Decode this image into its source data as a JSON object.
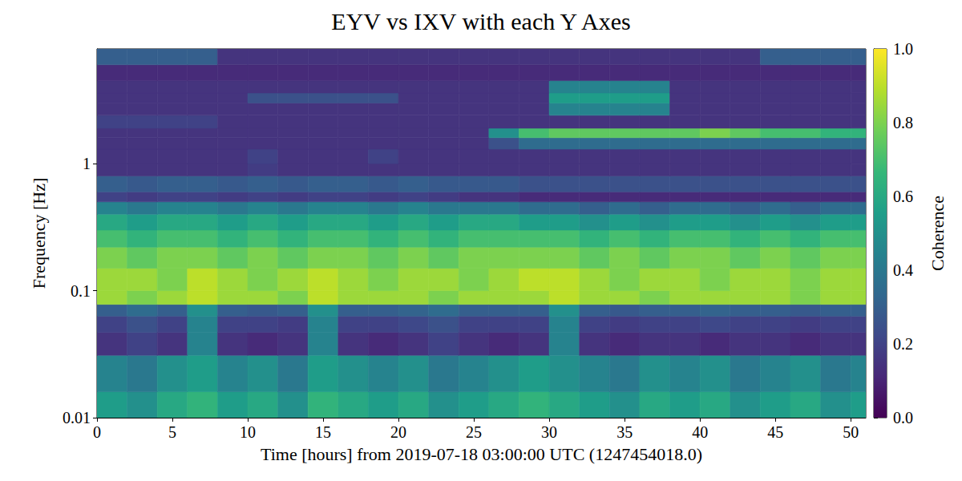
{
  "chart_data": {
    "type": "heatmap",
    "title": "EYV vs IXV with each Y Axes",
    "x_label": "Time [hours] from 2019-07-18 03:00:00 UTC (1247454018.0)",
    "y_label": "Frequency [Hz]",
    "xlim": [
      0,
      51
    ],
    "xticks": [
      0,
      5,
      10,
      15,
      20,
      25,
      30,
      35,
      40,
      45,
      50
    ],
    "ylim": [
      0.01,
      8
    ],
    "yticks": [
      0.01,
      0.1,
      1
    ],
    "log": "y",
    "grid": false,
    "x_edges": [
      0,
      2,
      4,
      6,
      8,
      10,
      12,
      14,
      16,
      18,
      20,
      22,
      24,
      26,
      28,
      30,
      32,
      34,
      36,
      38,
      40,
      42,
      44,
      46,
      48,
      50,
      51
    ],
    "y_edges": [
      0.01,
      0.016,
      0.031,
      0.047,
      0.063,
      0.078,
      0.1,
      0.15,
      0.22,
      0.3,
      0.4,
      0.5,
      0.6,
      0.8,
      1.0,
      1.3,
      1.6,
      1.9,
      2.4,
      3.0,
      3.6,
      4.5,
      6.0,
      8.0
    ],
    "cells": [
      [
        0.55,
        0.5,
        0.6,
        0.65,
        0.55,
        0.6,
        0.5,
        0.65,
        0.6,
        0.55,
        0.6,
        0.5,
        0.55,
        0.6,
        0.65,
        0.6,
        0.55,
        0.5,
        0.6,
        0.55,
        0.6,
        0.5,
        0.55,
        0.6,
        0.5,
        0.55
      ],
      [
        0.45,
        0.4,
        0.5,
        0.55,
        0.45,
        0.5,
        0.4,
        0.55,
        0.5,
        0.45,
        0.5,
        0.4,
        0.45,
        0.5,
        0.55,
        0.5,
        0.45,
        0.4,
        0.5,
        0.45,
        0.5,
        0.4,
        0.45,
        0.5,
        0.4,
        0.45
      ],
      [
        0.15,
        0.2,
        0.15,
        0.45,
        0.15,
        0.12,
        0.15,
        0.45,
        0.15,
        0.12,
        0.15,
        0.2,
        0.15,
        0.12,
        0.15,
        0.45,
        0.15,
        0.12,
        0.15,
        0.15,
        0.12,
        0.15,
        0.15,
        0.12,
        0.15,
        0.15
      ],
      [
        0.2,
        0.25,
        0.2,
        0.45,
        0.2,
        0.2,
        0.18,
        0.45,
        0.2,
        0.2,
        0.22,
        0.25,
        0.2,
        0.2,
        0.2,
        0.45,
        0.2,
        0.18,
        0.2,
        0.2,
        0.22,
        0.2,
        0.2,
        0.18,
        0.2,
        0.2
      ],
      [
        0.3,
        0.35,
        0.3,
        0.5,
        0.3,
        0.28,
        0.3,
        0.5,
        0.3,
        0.3,
        0.32,
        0.35,
        0.3,
        0.3,
        0.3,
        0.5,
        0.3,
        0.28,
        0.3,
        0.3,
        0.32,
        0.3,
        0.3,
        0.28,
        0.3,
        0.3
      ],
      [
        0.85,
        0.8,
        0.85,
        0.9,
        0.85,
        0.85,
        0.8,
        0.9,
        0.85,
        0.85,
        0.85,
        0.8,
        0.85,
        0.85,
        0.85,
        0.9,
        0.85,
        0.85,
        0.8,
        0.85,
        0.85,
        0.85,
        0.85,
        0.8,
        0.85,
        0.85
      ],
      [
        0.85,
        0.85,
        0.8,
        0.9,
        0.85,
        0.8,
        0.85,
        0.9,
        0.85,
        0.8,
        0.85,
        0.85,
        0.8,
        0.85,
        0.9,
        0.9,
        0.85,
        0.8,
        0.85,
        0.85,
        0.8,
        0.85,
        0.85,
        0.8,
        0.85,
        0.85
      ],
      [
        0.8,
        0.75,
        0.8,
        0.8,
        0.75,
        0.8,
        0.75,
        0.8,
        0.8,
        0.75,
        0.8,
        0.75,
        0.8,
        0.8,
        0.8,
        0.8,
        0.75,
        0.8,
        0.75,
        0.8,
        0.8,
        0.75,
        0.8,
        0.75,
        0.8,
        0.8
      ],
      [
        0.7,
        0.65,
        0.7,
        0.7,
        0.65,
        0.7,
        0.65,
        0.7,
        0.7,
        0.65,
        0.7,
        0.65,
        0.7,
        0.7,
        0.7,
        0.7,
        0.65,
        0.7,
        0.65,
        0.7,
        0.7,
        0.65,
        0.7,
        0.65,
        0.7,
        0.7
      ],
      [
        0.6,
        0.55,
        0.6,
        0.6,
        0.55,
        0.6,
        0.55,
        0.6,
        0.6,
        0.55,
        0.6,
        0.55,
        0.6,
        0.6,
        0.55,
        0.55,
        0.5,
        0.55,
        0.5,
        0.55,
        0.55,
        0.5,
        0.55,
        0.5,
        0.55,
        0.55
      ],
      [
        0.45,
        0.4,
        0.45,
        0.45,
        0.4,
        0.45,
        0.4,
        0.45,
        0.45,
        0.4,
        0.45,
        0.4,
        0.4,
        0.4,
        0.35,
        0.35,
        0.3,
        0.35,
        0.3,
        0.35,
        0.35,
        0.3,
        0.35,
        0.3,
        0.35,
        0.35
      ],
      [
        0.2,
        0.18,
        0.2,
        0.2,
        0.18,
        0.2,
        0.18,
        0.2,
        0.2,
        0.18,
        0.2,
        0.18,
        0.15,
        0.15,
        0.12,
        0.12,
        0.12,
        0.12,
        0.12,
        0.12,
        0.12,
        0.12,
        0.12,
        0.12,
        0.12,
        0.12
      ],
      [
        0.3,
        0.28,
        0.3,
        0.3,
        0.28,
        0.3,
        0.28,
        0.3,
        0.3,
        0.28,
        0.3,
        0.28,
        0.28,
        0.28,
        0.25,
        0.25,
        0.25,
        0.25,
        0.25,
        0.25,
        0.25,
        0.25,
        0.25,
        0.25,
        0.25,
        0.25
      ],
      [
        0.15,
        0.15,
        0.15,
        0.15,
        0.15,
        0.18,
        0.15,
        0.15,
        0.15,
        0.15,
        0.15,
        0.15,
        0.15,
        0.15,
        0.15,
        0.15,
        0.15,
        0.15,
        0.15,
        0.15,
        0.15,
        0.15,
        0.15,
        0.15,
        0.15,
        0.15
      ],
      [
        0.15,
        0.15,
        0.15,
        0.15,
        0.15,
        0.2,
        0.15,
        0.15,
        0.15,
        0.2,
        0.15,
        0.15,
        0.15,
        0.15,
        0.15,
        0.15,
        0.15,
        0.15,
        0.15,
        0.15,
        0.15,
        0.15,
        0.15,
        0.15,
        0.15,
        0.15
      ],
      [
        0.15,
        0.15,
        0.15,
        0.15,
        0.15,
        0.15,
        0.15,
        0.15,
        0.15,
        0.15,
        0.15,
        0.15,
        0.15,
        0.25,
        0.35,
        0.35,
        0.35,
        0.35,
        0.35,
        0.35,
        0.35,
        0.35,
        0.35,
        0.35,
        0.35,
        0.35
      ],
      [
        0.15,
        0.15,
        0.15,
        0.15,
        0.15,
        0.15,
        0.15,
        0.15,
        0.15,
        0.15,
        0.15,
        0.15,
        0.15,
        0.5,
        0.7,
        0.75,
        0.75,
        0.75,
        0.75,
        0.75,
        0.8,
        0.75,
        0.7,
        0.7,
        0.65,
        0.65
      ],
      [
        0.2,
        0.2,
        0.2,
        0.2,
        0.15,
        0.15,
        0.15,
        0.15,
        0.15,
        0.15,
        0.15,
        0.15,
        0.15,
        0.15,
        0.15,
        0.15,
        0.15,
        0.15,
        0.15,
        0.15,
        0.15,
        0.15,
        0.15,
        0.15,
        0.15,
        0.15
      ],
      [
        0.15,
        0.15,
        0.15,
        0.15,
        0.15,
        0.15,
        0.15,
        0.15,
        0.15,
        0.15,
        0.15,
        0.15,
        0.15,
        0.15,
        0.15,
        0.45,
        0.45,
        0.45,
        0.45,
        0.15,
        0.15,
        0.15,
        0.15,
        0.15,
        0.15,
        0.15
      ],
      [
        0.15,
        0.15,
        0.15,
        0.15,
        0.15,
        0.25,
        0.25,
        0.25,
        0.25,
        0.25,
        0.15,
        0.15,
        0.15,
        0.15,
        0.15,
        0.55,
        0.55,
        0.55,
        0.55,
        0.15,
        0.15,
        0.15,
        0.15,
        0.15,
        0.15,
        0.15
      ],
      [
        0.15,
        0.15,
        0.15,
        0.15,
        0.15,
        0.15,
        0.15,
        0.15,
        0.15,
        0.15,
        0.15,
        0.15,
        0.15,
        0.15,
        0.15,
        0.45,
        0.45,
        0.45,
        0.45,
        0.15,
        0.15,
        0.15,
        0.15,
        0.15,
        0.15,
        0.15
      ],
      [
        0.12,
        0.12,
        0.12,
        0.12,
        0.12,
        0.12,
        0.12,
        0.12,
        0.12,
        0.12,
        0.12,
        0.12,
        0.12,
        0.12,
        0.12,
        0.12,
        0.12,
        0.12,
        0.12,
        0.12,
        0.12,
        0.12,
        0.12,
        0.12,
        0.12,
        0.12
      ],
      [
        0.3,
        0.3,
        0.3,
        0.3,
        0.15,
        0.15,
        0.15,
        0.15,
        0.15,
        0.15,
        0.15,
        0.15,
        0.15,
        0.15,
        0.15,
        0.15,
        0.15,
        0.15,
        0.15,
        0.15,
        0.15,
        0.15,
        0.3,
        0.3,
        0.3,
        0.3
      ]
    ],
    "colorbar_label": "Coherence",
    "colorbar_range": [
      0,
      1
    ],
    "colorbar_ticks": [
      {
        "value": 0,
        "label": "0.0"
      },
      {
        "value": 0.2,
        "label": "0.2"
      },
      {
        "value": 0.4,
        "label": "0.4"
      },
      {
        "value": 0.6,
        "label": "0.6"
      },
      {
        "value": 0.8,
        "label": "0.8"
      },
      {
        "value": 1,
        "label": "1.0"
      }
    ]
  }
}
